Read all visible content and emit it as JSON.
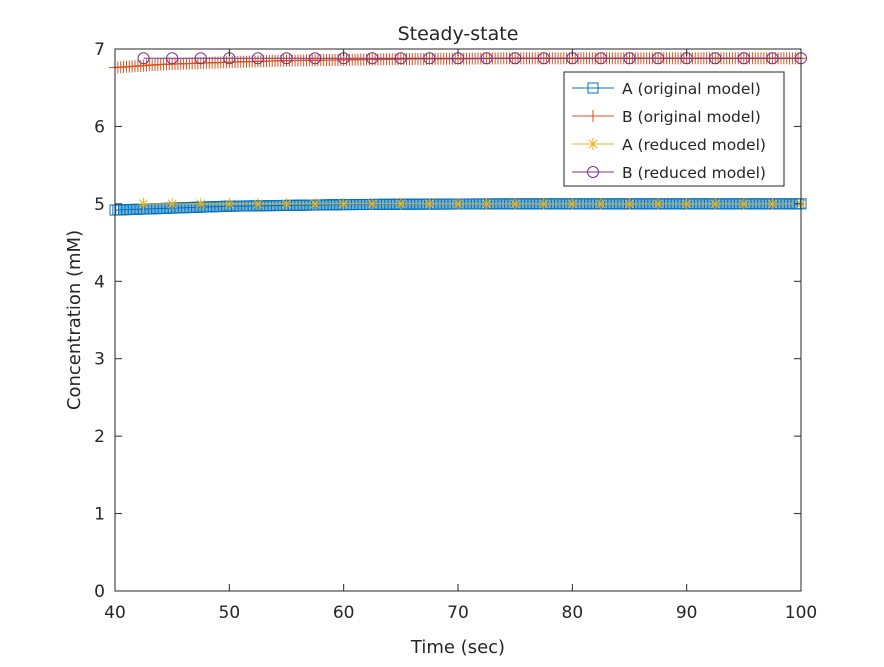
{
  "chart_data": {
    "type": "line",
    "title": "Steady-state",
    "xlabel": "Time (sec)",
    "ylabel": "Concentration (mM)",
    "xlim": [
      40,
      100
    ],
    "ylim": [
      0,
      7
    ],
    "xticks": [
      40,
      50,
      60,
      70,
      80,
      90,
      100
    ],
    "yticks": [
      0,
      1,
      2,
      3,
      4,
      5,
      6,
      7
    ],
    "grid": false,
    "legend_location": "top-right",
    "series": [
      {
        "name": "A (original model)",
        "color": "#0072BD",
        "marker": "square",
        "x": [
          40,
          42,
          44,
          46,
          48,
          50,
          55,
          60,
          65,
          70,
          75,
          80,
          85,
          90,
          95,
          100
        ],
        "y": [
          4.92,
          4.93,
          4.94,
          4.95,
          4.96,
          4.97,
          4.98,
          4.99,
          4.995,
          4.998,
          5.0,
          5.0,
          5.0,
          5.0,
          5.0,
          5.0
        ]
      },
      {
        "name": "B (original model)",
        "color": "#D95319",
        "marker": "plus",
        "x": [
          40,
          42,
          44,
          46,
          48,
          50,
          55,
          60,
          65,
          70,
          75,
          80,
          85,
          90,
          95,
          100
        ],
        "y": [
          6.76,
          6.78,
          6.8,
          6.81,
          6.82,
          6.83,
          6.85,
          6.86,
          6.87,
          6.875,
          6.88,
          6.88,
          6.88,
          6.88,
          6.88,
          6.88
        ]
      },
      {
        "name": "A (reduced model)",
        "color": "#EDB120",
        "marker": "asterisk",
        "x": [
          42.5,
          45,
          47.5,
          50,
          52.5,
          55,
          57.5,
          60,
          62.5,
          65,
          67.5,
          70,
          72.5,
          75,
          77.5,
          80,
          82.5,
          85,
          87.5,
          90,
          92.5,
          95,
          97.5,
          100
        ],
        "y": [
          5.0,
          5.0,
          5.0,
          5.0,
          5.0,
          5.0,
          5.0,
          5.0,
          5.0,
          5.0,
          5.0,
          5.0,
          5.0,
          5.0,
          5.0,
          5.0,
          5.0,
          5.0,
          5.0,
          5.0,
          5.0,
          5.0,
          5.0,
          5.0
        ]
      },
      {
        "name": "B (reduced model)",
        "color": "#7E2F8E",
        "marker": "circle",
        "x": [
          42.5,
          45,
          47.5,
          50,
          52.5,
          55,
          57.5,
          60,
          62.5,
          65,
          67.5,
          70,
          72.5,
          75,
          77.5,
          80,
          82.5,
          85,
          87.5,
          90,
          92.5,
          95,
          97.5,
          100
        ],
        "y": [
          6.88,
          6.88,
          6.88,
          6.88,
          6.88,
          6.88,
          6.88,
          6.88,
          6.88,
          6.88,
          6.88,
          6.88,
          6.88,
          6.88,
          6.88,
          6.88,
          6.88,
          6.88,
          6.88,
          6.88,
          6.88,
          6.88,
          6.88,
          6.88
        ]
      }
    ]
  }
}
